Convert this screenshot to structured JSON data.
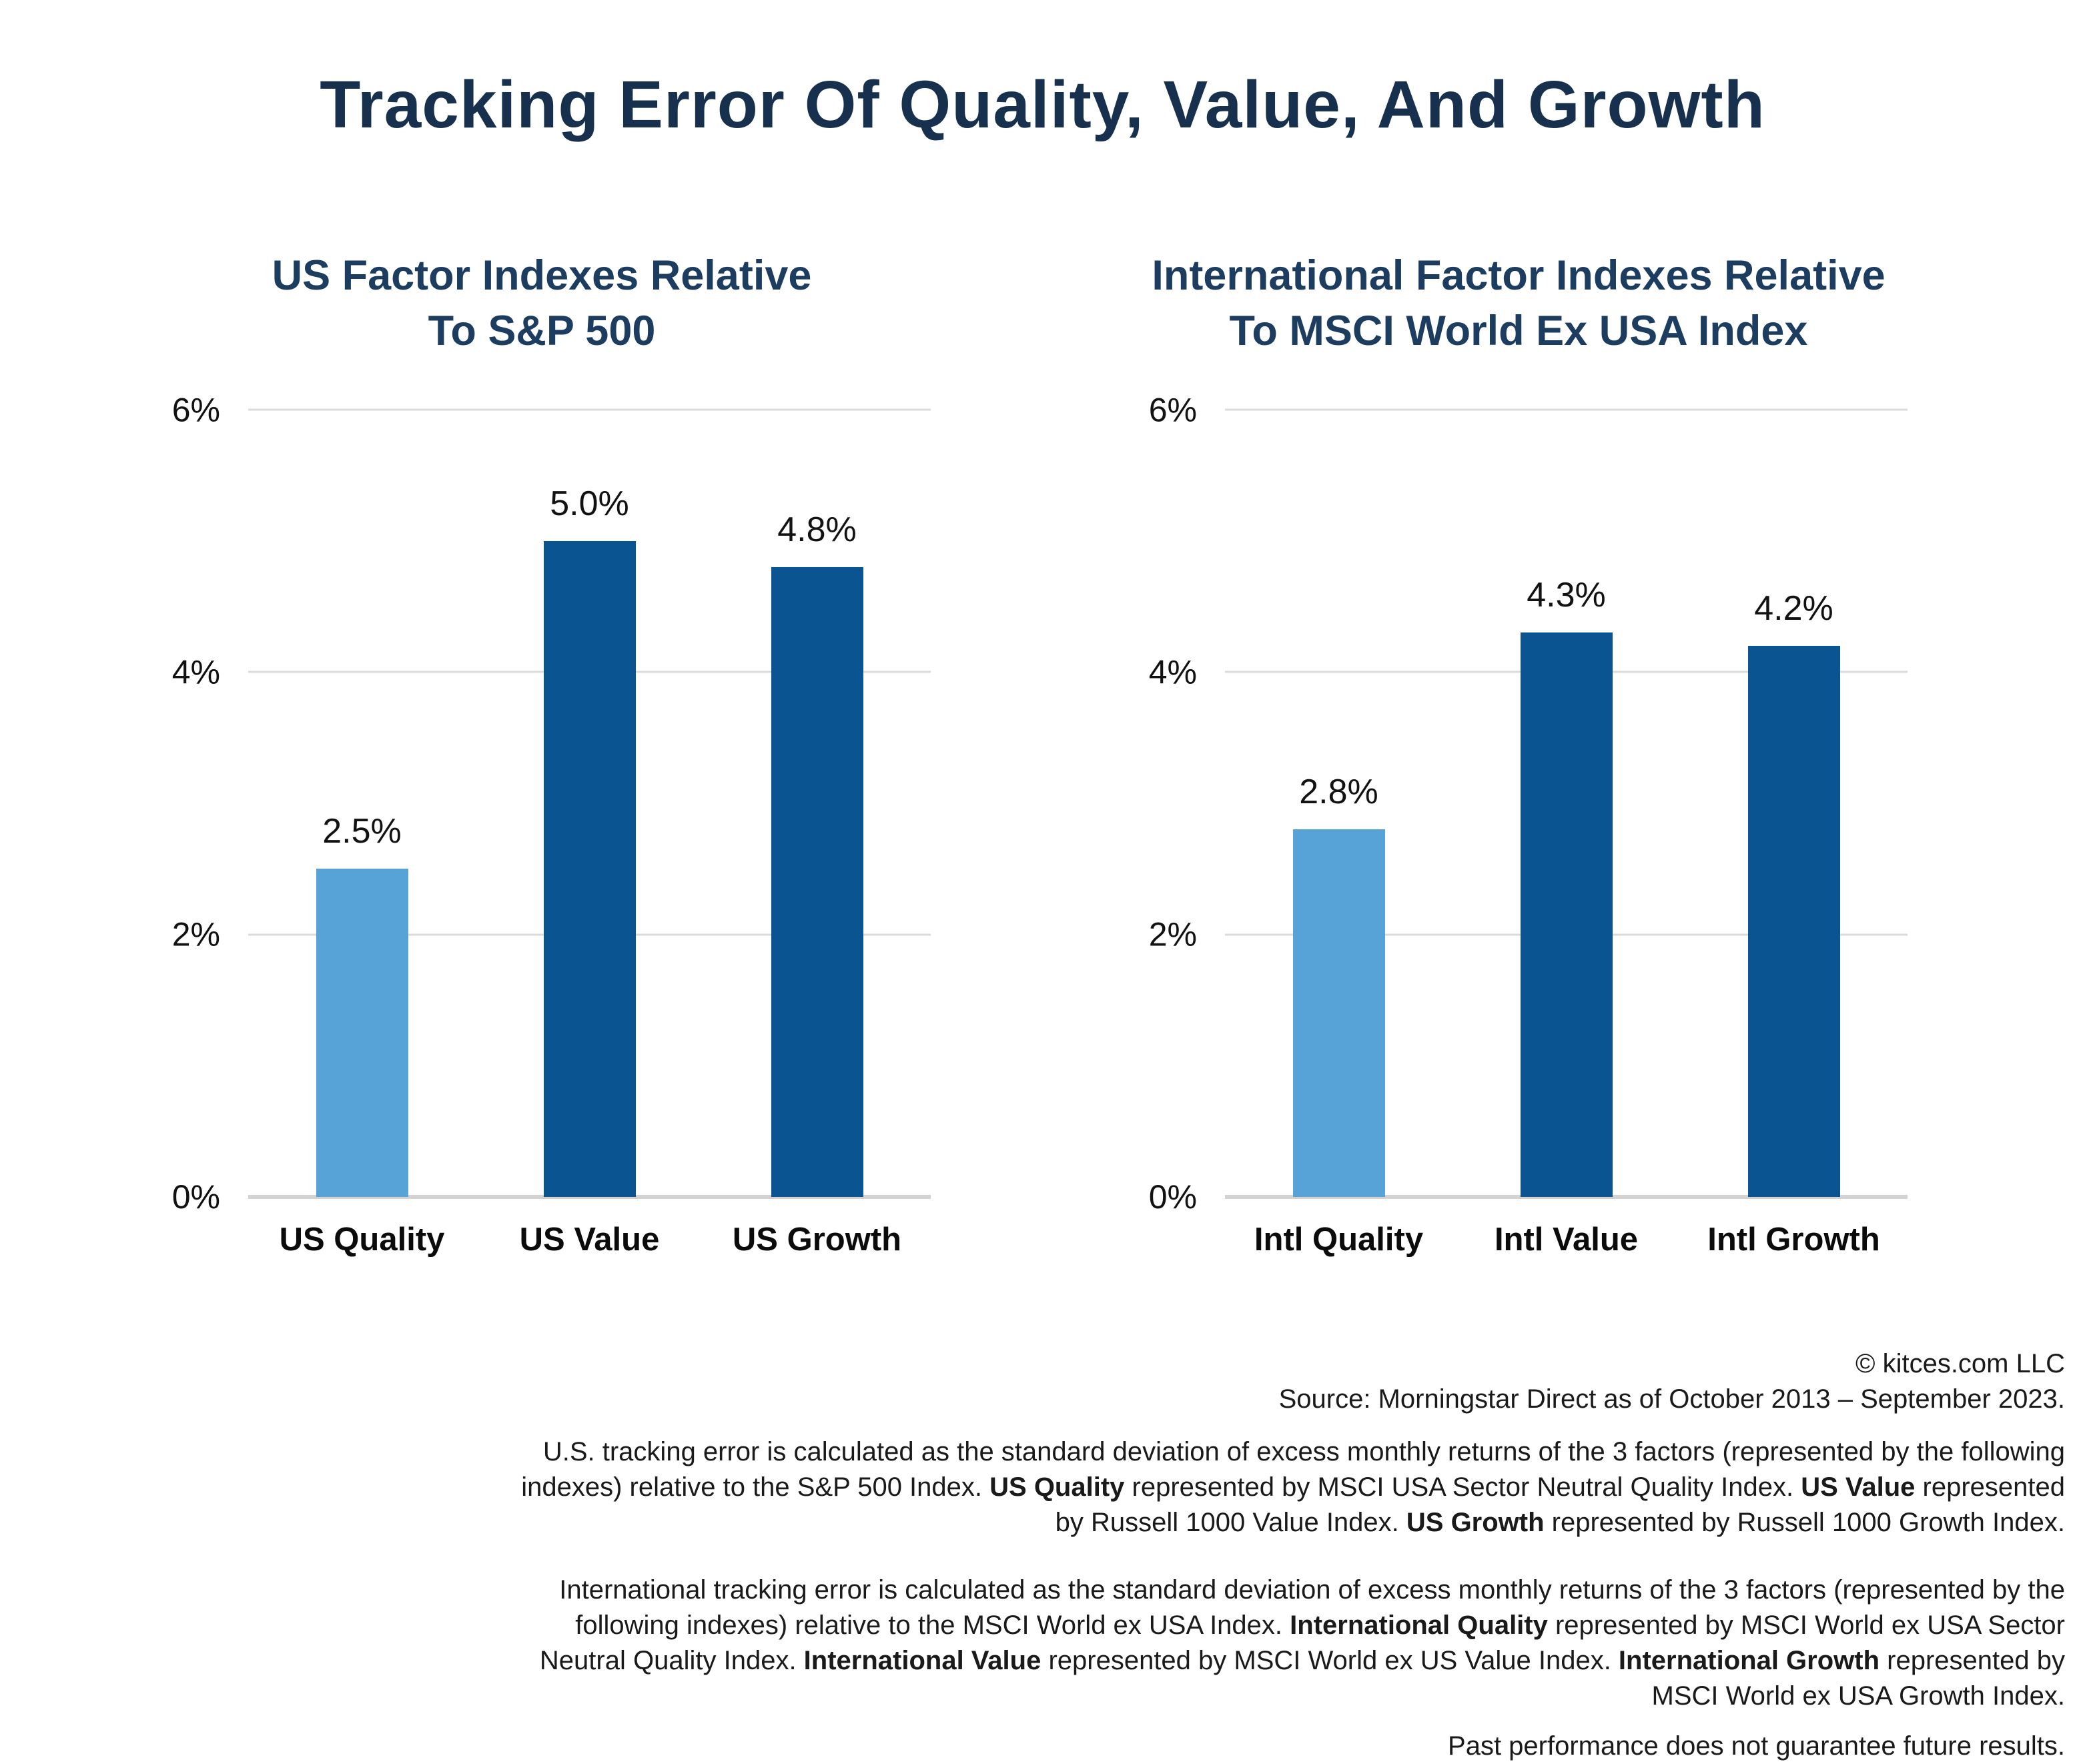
{
  "page_title": "Tracking Error Of Quality, Value, And Growth",
  "colors": {
    "title_navy": "#16304E",
    "subtitle_navy": "#1C3D60",
    "light_blue": "#57A3D8",
    "dark_blue": "#0A5591",
    "gridline": "#DBDBDB",
    "baseline": "#D2D2D2",
    "text_dark": "#1A1A1A"
  },
  "chart_data": [
    {
      "type": "bar",
      "title": "US Factor Indexes Relative To S&P 500",
      "title_lines": [
        "US Factor Indexes Relative",
        "To S&P 500"
      ],
      "categories": [
        "US Quality",
        "US Value",
        "US Growth"
      ],
      "values": [
        2.5,
        5.0,
        4.8
      ],
      "value_labels": [
        "2.5%",
        "5.0%",
        "4.8%"
      ],
      "bar_colors": [
        "#57A3D8",
        "#0A5591",
        "#0A5591"
      ],
      "xlabel": "",
      "ylabel": "",
      "ylim": [
        0,
        6
      ],
      "yticks": [
        6,
        4,
        2,
        0
      ],
      "ytick_labels": [
        "6%",
        "4%",
        "2%",
        "0%"
      ],
      "grid": "horizontal-gridlines-on",
      "legend": "none"
    },
    {
      "type": "bar",
      "title": "International Factor Indexes Relative To MSCI World Ex USA Index",
      "title_lines": [
        "International Factor Indexes Relative",
        "To MSCI World Ex USA Index"
      ],
      "categories": [
        "Intl Quality",
        "Intl Value",
        "Intl Growth"
      ],
      "values": [
        2.8,
        4.3,
        4.2
      ],
      "value_labels": [
        "2.8%",
        "4.3%",
        "4.2%"
      ],
      "bar_colors": [
        "#57A3D8",
        "#0A5591",
        "#0A5591"
      ],
      "xlabel": "",
      "ylabel": "",
      "ylim": [
        0,
        6
      ],
      "yticks": [
        6,
        4,
        2,
        0
      ],
      "ytick_labels": [
        "6%",
        "4%",
        "2%",
        "0%"
      ],
      "grid": "horizontal-gridlines-on",
      "legend": "none"
    }
  ],
  "footer": {
    "copyright": "© kitces.com LLC",
    "source": "Source: Morningstar Direct as of October 2013 – September 2023.",
    "us_note_segments": [
      {
        "t": "U.S. tracking error is calculated as the standard deviation of excess monthly returns of the 3 factors (represented by the following indexes) relative to the S&P 500 Index. ",
        "b": false
      },
      {
        "t": "US Quality",
        "b": true
      },
      {
        "t": " represented by MSCI USA Sector Neutral Quality Index. ",
        "b": false
      },
      {
        "t": "US Value",
        "b": true
      },
      {
        "t": " represented by Russell 1000 Value Index. ",
        "b": false
      },
      {
        "t": "US Growth",
        "b": true
      },
      {
        "t": " represented by Russell 1000 Growth Index.",
        "b": false
      }
    ],
    "intl_note_segments": [
      {
        "t": "International tracking error is calculated as the standard deviation of excess monthly returns of the 3 factors (represented by the following indexes) relative to the MSCI World ex USA Index. ",
        "b": false
      },
      {
        "t": "International Quality",
        "b": true
      },
      {
        "t": " represented by MSCI World ex USA Sector Neutral Quality Index. ",
        "b": false
      },
      {
        "t": "International Value",
        "b": true
      },
      {
        "t": " represented by MSCI World ex US Value Index. ",
        "b": false
      },
      {
        "t": "International Growth",
        "b": true
      },
      {
        "t": " represented by MSCI World ex USA Growth Index.",
        "b": false
      }
    ],
    "disclaimer": "Past performance does not guarantee future results."
  }
}
